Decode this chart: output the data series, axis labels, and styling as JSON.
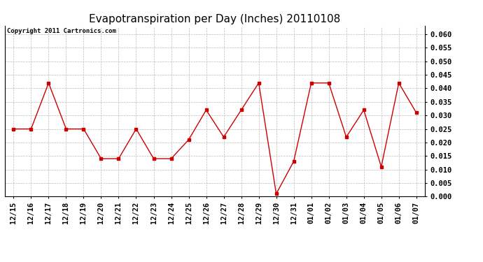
{
  "title": "Evapotranspiration per Day (Inches) 20110108",
  "copyright_text": "Copyright 2011 Cartronics.com",
  "labels": [
    "12/15",
    "12/16",
    "12/17",
    "12/18",
    "12/19",
    "12/20",
    "12/21",
    "12/22",
    "12/23",
    "12/24",
    "12/25",
    "12/26",
    "12/27",
    "12/28",
    "12/29",
    "12/30",
    "12/31",
    "01/01",
    "01/02",
    "01/03",
    "01/04",
    "01/05",
    "01/06",
    "01/07"
  ],
  "values": [
    0.025,
    0.025,
    0.042,
    0.025,
    0.025,
    0.014,
    0.014,
    0.025,
    0.014,
    0.014,
    0.021,
    0.032,
    0.022,
    0.032,
    0.042,
    0.001,
    0.013,
    0.042,
    0.042,
    0.022,
    0.032,
    0.011,
    0.042,
    0.031
  ],
  "line_color": "#cc0000",
  "marker": "s",
  "marker_size": 3,
  "ylim": [
    0.0,
    0.063
  ],
  "yticks": [
    0.0,
    0.005,
    0.01,
    0.015,
    0.02,
    0.025,
    0.03,
    0.035,
    0.04,
    0.045,
    0.05,
    0.055,
    0.06
  ],
  "background_color": "#ffffff",
  "grid_color": "#bbbbbb",
  "title_fontsize": 11,
  "tick_fontsize": 7.5,
  "copyright_fontsize": 6.5
}
